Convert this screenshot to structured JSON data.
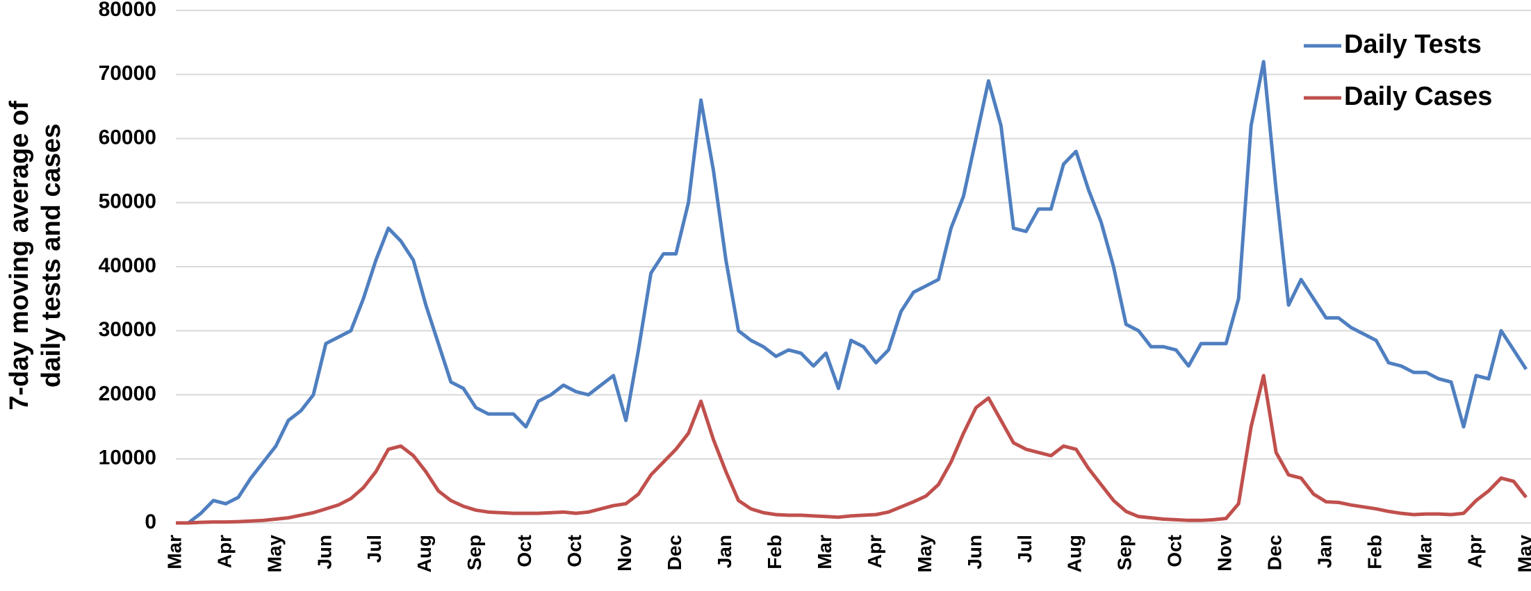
{
  "chart_data": {
    "type": "line",
    "y_label": [
      "7-day moving average of",
      "daily tests and cases"
    ],
    "categories": [
      "Mar",
      null,
      null,
      null,
      "Apr",
      null,
      null,
      null,
      "May",
      null,
      null,
      null,
      "Jun",
      null,
      null,
      null,
      "Jul",
      null,
      null,
      null,
      "Aug",
      null,
      null,
      null,
      "Sep",
      null,
      null,
      null,
      "Oct",
      null,
      null,
      null,
      "Oct",
      null,
      null,
      null,
      "Nov",
      null,
      null,
      null,
      "Dec",
      null,
      null,
      null,
      "Jan",
      null,
      null,
      null,
      "Feb",
      null,
      null,
      null,
      "Mar",
      null,
      null,
      null,
      "Apr",
      null,
      null,
      null,
      "May",
      null,
      null,
      null,
      "Jun",
      null,
      null,
      null,
      "Jul",
      null,
      null,
      null,
      "Aug",
      null,
      null,
      null,
      "Sep",
      null,
      null,
      null,
      "Oct",
      null,
      null,
      null,
      "Nov",
      null,
      null,
      null,
      "Dec",
      null,
      null,
      null,
      "Jan",
      null,
      null,
      null,
      "Feb",
      null,
      null,
      null,
      "Mar",
      null,
      null,
      null,
      "Apr",
      null,
      null,
      null,
      "May"
    ],
    "series": [
      {
        "name": "Daily Tests",
        "color": "#4f7fc0",
        "values": [
          0,
          0,
          1500,
          3500,
          3000,
          4000,
          7000,
          9500,
          12000,
          16000,
          17500,
          20000,
          28000,
          29000,
          30000,
          35000,
          41000,
          46000,
          44000,
          41000,
          34000,
          28000,
          22000,
          21000,
          18000,
          17000,
          17000,
          17000,
          15000,
          19000,
          20000,
          21500,
          20500,
          20000,
          21500,
          23000,
          16000,
          27000,
          39000,
          42000,
          42000,
          50000,
          66000,
          55000,
          41000,
          30000,
          28500,
          27500,
          26000,
          27000,
          26500,
          24500,
          26500,
          21000,
          28500,
          27500,
          25000,
          27000,
          33000,
          36000,
          37000,
          38000,
          46000,
          51000,
          60000,
          69000,
          62000,
          46000,
          45500,
          49000,
          49000,
          56000,
          58000,
          52000,
          47000,
          40000,
          31000,
          30000,
          27500,
          27500,
          27000,
          24500,
          28000,
          28000,
          28000,
          35000,
          62000,
          72000,
          52000,
          34000,
          38000,
          35000,
          32000,
          32000,
          30500,
          29500,
          28500,
          25000,
          24500,
          23500,
          23500,
          22500,
          22000,
          15000,
          23000,
          22500,
          30000,
          27000,
          24000
        ]
      },
      {
        "name": "Daily Cases",
        "color": "#c0504d",
        "values": [
          0,
          0,
          100,
          150,
          150,
          200,
          300,
          400,
          600,
          800,
          1200,
          1600,
          2200,
          2800,
          3800,
          5500,
          8000,
          11500,
          12000,
          10500,
          8000,
          5000,
          3500,
          2600,
          2000,
          1700,
          1600,
          1500,
          1500,
          1500,
          1600,
          1700,
          1500,
          1700,
          2200,
          2700,
          3000,
          4500,
          7500,
          9500,
          11500,
          14000,
          19000,
          13000,
          8000,
          3500,
          2200,
          1600,
          1300,
          1200,
          1200,
          1100,
          1000,
          900,
          1100,
          1200,
          1300,
          1700,
          2500,
          3300,
          4200,
          6000,
          9500,
          14000,
          18000,
          19500,
          16000,
          12500,
          11500,
          11000,
          10500,
          12000,
          11500,
          8500,
          6000,
          3500,
          1800,
          1000,
          800,
          600,
          500,
          400,
          400,
          500,
          700,
          3000,
          15000,
          23000,
          11000,
          7500,
          7000,
          4500,
          3300,
          3200,
          2800,
          2500,
          2200,
          1800,
          1500,
          1300,
          1400,
          1400,
          1300,
          1500,
          3500,
          5000,
          7000,
          6500,
          4000
        ]
      }
    ],
    "ylim": [
      0,
      80000
    ],
    "yticks": [
      0,
      10000,
      20000,
      30000,
      40000,
      50000,
      60000,
      70000,
      80000
    ],
    "grid": true,
    "legend": "top-right"
  }
}
